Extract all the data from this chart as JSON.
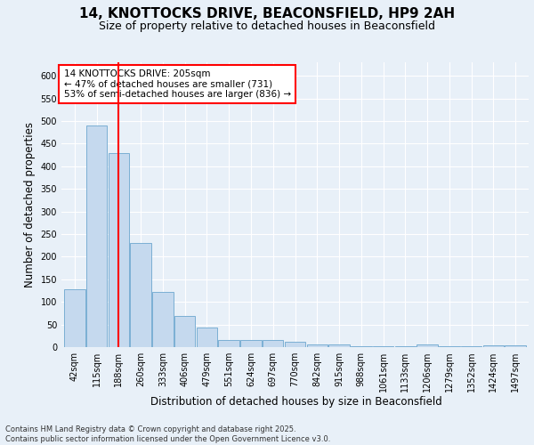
{
  "title_line1": "14, KNOTTOCKS DRIVE, BEACONSFIELD, HP9 2AH",
  "title_line2": "Size of property relative to detached houses in Beaconsfield",
  "xlabel": "Distribution of detached houses by size in Beaconsfield",
  "ylabel": "Number of detached properties",
  "categories": [
    "42sqm",
    "115sqm",
    "188sqm",
    "260sqm",
    "333sqm",
    "406sqm",
    "479sqm",
    "551sqm",
    "624sqm",
    "697sqm",
    "770sqm",
    "842sqm",
    "915sqm",
    "988sqm",
    "1061sqm",
    "1133sqm",
    "1206sqm",
    "1279sqm",
    "1352sqm",
    "1424sqm",
    "1497sqm"
  ],
  "values": [
    128,
    490,
    430,
    230,
    123,
    68,
    43,
    15,
    15,
    16,
    12,
    6,
    6,
    1,
    1,
    1,
    5,
    1,
    1,
    3,
    3
  ],
  "bar_color": "#c5d9ee",
  "bar_edge_color": "#7bafd4",
  "red_line_index": 2,
  "annotation_box_text": "14 KNOTTOCKS DRIVE: 205sqm\n← 47% of detached houses are smaller (731)\n53% of semi-detached houses are larger (836) →",
  "ylim": [
    0,
    630
  ],
  "yticks": [
    0,
    50,
    100,
    150,
    200,
    250,
    300,
    350,
    400,
    450,
    500,
    550,
    600
  ],
  "background_color": "#e8f0f8",
  "plot_bg_color": "#e8f0f8",
  "grid_color": "#ffffff",
  "footer_text": "Contains HM Land Registry data © Crown copyright and database right 2025.\nContains public sector information licensed under the Open Government Licence v3.0.",
  "title_fontsize": 11,
  "subtitle_fontsize": 9,
  "tick_fontsize": 7,
  "label_fontsize": 8.5,
  "footer_fontsize": 6
}
